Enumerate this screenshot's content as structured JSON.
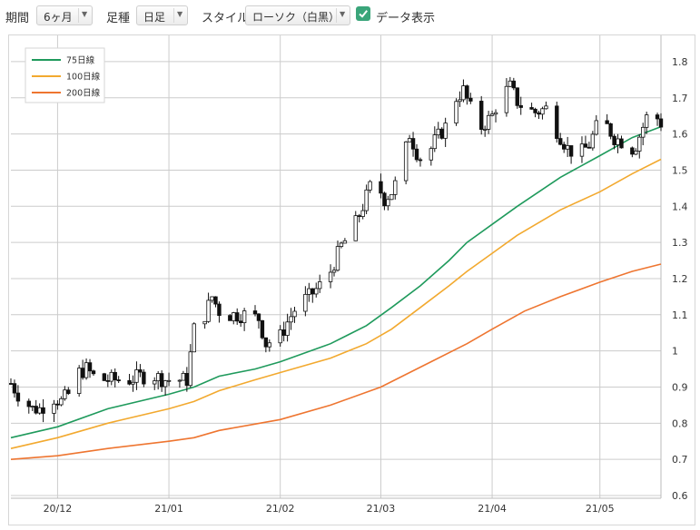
{
  "toolbar": {
    "period_label": "期間",
    "period_value": "6ヶ月",
    "interval_label": "足種",
    "interval_value": "日足",
    "style_label": "スタイル",
    "style_value": "ローソク（白黒）",
    "data_display_label": "データ表示",
    "data_display_checked": true
  },
  "colors": {
    "ma75": "#1f9a5c",
    "ma100": "#f2a92f",
    "ma200": "#ee7530",
    "candle": "#111111",
    "grid": "#cccccc",
    "checkbox": "#3aa57a"
  },
  "chart_data": {
    "type": "candlestick",
    "x_range": [
      "2020-11-18",
      "2021-05-18"
    ],
    "ylim": [
      0.6,
      1.85
    ],
    "y_ticks": [
      "0.6",
      "0.7",
      "0.8",
      "0.9",
      "1",
      "1.1",
      "1.2",
      "1.3",
      "1.4",
      "1.5",
      "1.6",
      "1.7",
      "1.8"
    ],
    "x_ticks": [
      {
        "date": "2020-12-01",
        "label": "20/12"
      },
      {
        "date": "2021-01-01",
        "label": "21/01"
      },
      {
        "date": "2021-02-01",
        "label": "21/02"
      },
      {
        "date": "2021-03-01",
        "label": "21/03"
      },
      {
        "date": "2021-04-01",
        "label": "21/04"
      },
      {
        "date": "2021-05-01",
        "label": "21/05"
      }
    ],
    "grid": true,
    "legend_position": "top-left",
    "legend": [
      "75日線",
      "100日線",
      "200日線"
    ],
    "series": [
      {
        "name": "75日線",
        "color": "#1f9a5c",
        "points": [
          [
            "2020-11-18",
            0.76
          ],
          [
            "2020-12-01",
            0.79
          ],
          [
            "2020-12-15",
            0.84
          ],
          [
            "2021-01-01",
            0.88
          ],
          [
            "2021-01-08",
            0.9
          ],
          [
            "2021-01-15",
            0.93
          ],
          [
            "2021-01-25",
            0.95
          ],
          [
            "2021-02-01",
            0.97
          ],
          [
            "2021-02-15",
            1.02
          ],
          [
            "2021-02-25",
            1.07
          ],
          [
            "2021-03-04",
            1.12
          ],
          [
            "2021-03-12",
            1.18
          ],
          [
            "2021-03-20",
            1.25
          ],
          [
            "2021-03-25",
            1.3
          ],
          [
            "2021-04-01",
            1.35
          ],
          [
            "2021-04-08",
            1.4
          ],
          [
            "2021-04-20",
            1.48
          ],
          [
            "2021-05-01",
            1.54
          ],
          [
            "2021-05-10",
            1.59
          ],
          [
            "2021-05-18",
            1.62
          ]
        ]
      },
      {
        "name": "100日線",
        "color": "#f2a92f",
        "points": [
          [
            "2020-11-18",
            0.73
          ],
          [
            "2020-12-01",
            0.76
          ],
          [
            "2020-12-15",
            0.8
          ],
          [
            "2021-01-01",
            0.84
          ],
          [
            "2021-01-08",
            0.86
          ],
          [
            "2021-01-15",
            0.89
          ],
          [
            "2021-01-25",
            0.92
          ],
          [
            "2021-02-01",
            0.94
          ],
          [
            "2021-02-15",
            0.98
          ],
          [
            "2021-02-25",
            1.02
          ],
          [
            "2021-03-04",
            1.06
          ],
          [
            "2021-03-12",
            1.12
          ],
          [
            "2021-03-20",
            1.18
          ],
          [
            "2021-03-25",
            1.22
          ],
          [
            "2021-04-01",
            1.27
          ],
          [
            "2021-04-08",
            1.32
          ],
          [
            "2021-04-20",
            1.39
          ],
          [
            "2021-05-01",
            1.44
          ],
          [
            "2021-05-10",
            1.49
          ],
          [
            "2021-05-18",
            1.53
          ]
        ]
      },
      {
        "name": "200日線",
        "color": "#ee7530",
        "points": [
          [
            "2020-11-18",
            0.7
          ],
          [
            "2020-12-01",
            0.71
          ],
          [
            "2020-12-15",
            0.73
          ],
          [
            "2021-01-01",
            0.75
          ],
          [
            "2021-01-08",
            0.76
          ],
          [
            "2021-01-15",
            0.78
          ],
          [
            "2021-02-01",
            0.81
          ],
          [
            "2021-02-15",
            0.85
          ],
          [
            "2021-03-01",
            0.9
          ],
          [
            "2021-03-15",
            0.97
          ],
          [
            "2021-03-25",
            1.02
          ],
          [
            "2021-04-01",
            1.06
          ],
          [
            "2021-04-10",
            1.11
          ],
          [
            "2021-04-20",
            1.15
          ],
          [
            "2021-05-01",
            1.19
          ],
          [
            "2021-05-10",
            1.22
          ],
          [
            "2021-05-18",
            1.24
          ]
        ]
      }
    ],
    "candle_guide": [
      [
        "2020-11-18",
        0.91
      ],
      [
        "2020-11-20",
        0.88
      ],
      [
        "2020-11-24",
        0.84
      ],
      [
        "2020-11-26",
        0.84
      ],
      [
        "2020-11-30",
        0.87
      ],
      [
        "2020-12-02",
        0.86
      ],
      [
        "2020-12-04",
        0.88
      ],
      [
        "2020-12-07",
        0.94
      ],
      [
        "2020-12-09",
        0.95
      ],
      [
        "2020-12-11",
        0.93
      ],
      [
        "2020-12-14",
        0.92
      ],
      [
        "2020-12-17",
        0.92
      ],
      [
        "2020-12-21",
        0.92
      ],
      [
        "2020-12-24",
        0.93
      ],
      [
        "2020-12-28",
        0.93
      ],
      [
        "2020-12-31",
        0.92
      ],
      [
        "2021-01-04",
        0.92
      ],
      [
        "2021-01-06",
        0.92
      ],
      [
        "2021-01-08",
        1.06
      ],
      [
        "2021-01-11",
        1.1
      ],
      [
        "2021-01-13",
        1.15
      ],
      [
        "2021-01-15",
        1.11
      ],
      [
        "2021-01-18",
        1.1
      ],
      [
        "2021-01-22",
        1.1
      ],
      [
        "2021-01-26",
        1.09
      ],
      [
        "2021-01-28",
        1.02
      ],
      [
        "2021-02-01",
        1.04
      ],
      [
        "2021-02-03",
        1.08
      ],
      [
        "2021-02-06",
        1.13
      ],
      [
        "2021-02-09",
        1.15
      ],
      [
        "2021-02-12",
        1.18
      ],
      [
        "2021-02-15",
        1.22
      ],
      [
        "2021-02-18",
        1.29
      ],
      [
        "2021-02-21",
        1.33
      ],
      [
        "2021-02-24",
        1.4
      ],
      [
        "2021-02-27",
        1.48
      ],
      [
        "2021-03-02",
        1.42
      ],
      [
        "2021-03-04",
        1.44
      ],
      [
        "2021-03-06",
        1.48
      ],
      [
        "2021-03-09",
        1.6
      ],
      [
        "2021-03-11",
        1.55
      ],
      [
        "2021-03-13",
        1.52
      ],
      [
        "2021-03-16",
        1.58
      ],
      [
        "2021-03-19",
        1.62
      ],
      [
        "2021-03-22",
        1.7
      ],
      [
        "2021-03-24",
        1.72
      ],
      [
        "2021-03-26",
        1.67
      ],
      [
        "2021-03-29",
        1.62
      ],
      [
        "2021-04-01",
        1.65
      ],
      [
        "2021-04-03",
        1.7
      ],
      [
        "2021-04-06",
        1.73
      ],
      [
        "2021-04-08",
        1.69
      ],
      [
        "2021-04-10",
        1.67
      ],
      [
        "2021-04-13",
        1.66
      ],
      [
        "2021-04-16",
        1.67
      ],
      [
        "2021-04-19",
        1.61
      ],
      [
        "2021-04-22",
        1.56
      ],
      [
        "2021-04-25",
        1.54
      ],
      [
        "2021-04-28",
        1.57
      ],
      [
        "2021-05-01",
        1.64
      ],
      [
        "2021-05-03",
        1.62
      ],
      [
        "2021-05-05",
        1.59
      ],
      [
        "2021-05-07",
        1.58
      ],
      [
        "2021-05-09",
        1.55
      ],
      [
        "2021-05-11",
        1.57
      ],
      [
        "2021-05-13",
        1.62
      ],
      [
        "2021-05-15",
        1.67
      ],
      [
        "2021-05-18",
        1.63
      ]
    ]
  }
}
